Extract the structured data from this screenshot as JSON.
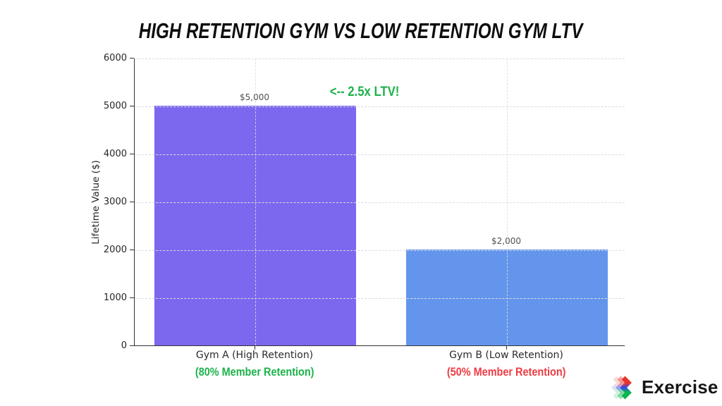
{
  "title": "HIGH RETENTION GYM VS LOW RETENTION GYM LTV",
  "chart_data": {
    "type": "bar",
    "categories": [
      "Gym A (High Retention)",
      "Gym B (Low Retention)"
    ],
    "values": [
      5000,
      2000
    ],
    "value_labels": [
      "$5,000",
      "$2,000"
    ],
    "bar_colors": [
      "#7b68ee",
      "#6495ed"
    ],
    "sub_labels": [
      {
        "text": "(80% Member Retention)",
        "color": "#1db24a"
      },
      {
        "text": "(50% Member Retention)",
        "color": "#ee3b43"
      }
    ],
    "annotation": {
      "text": "<-- 2.5x LTV!",
      "color": "#1db24a"
    },
    "title": "HIGH RETENTION GYM VS LOW RETENTION GYM LTV",
    "xlabel": "",
    "ylabel": "Lifetime Value ($)",
    "yticks": [
      0,
      1000,
      2000,
      3000,
      4000,
      5000,
      6000
    ],
    "ylim": [
      0,
      6000
    ],
    "grid": "dashed, horizontal and vertical",
    "legend": "none"
  },
  "branding": {
    "logo_text": "Exercise",
    "logo_icon": "triple-chevron-rgb-zigzag"
  }
}
